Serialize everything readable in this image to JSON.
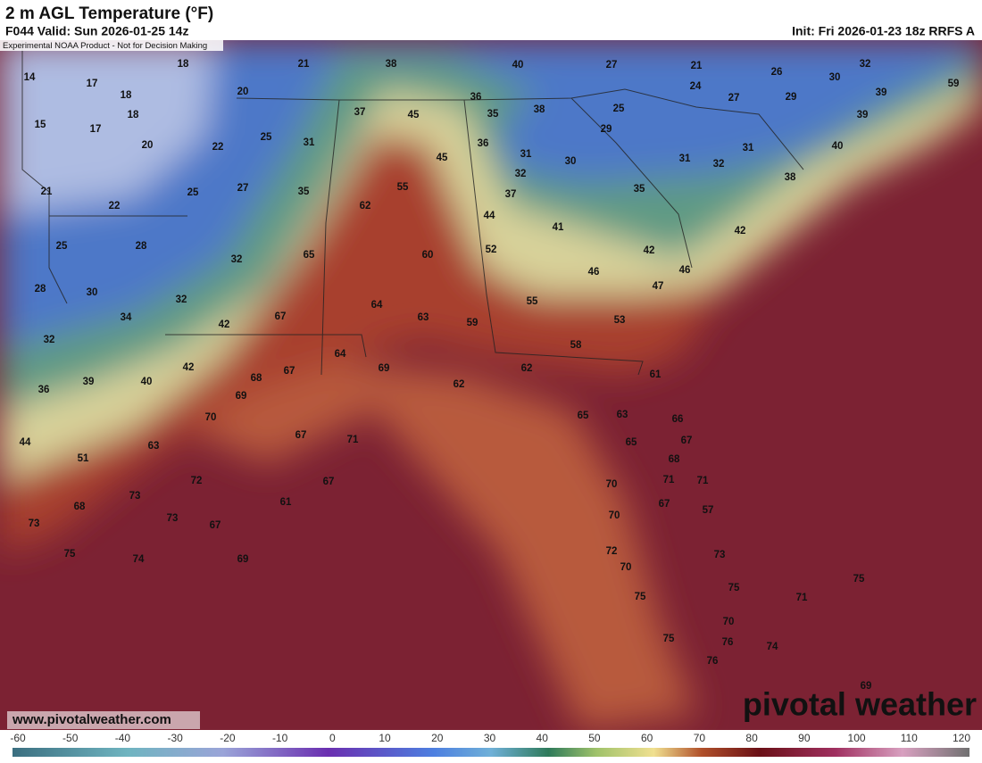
{
  "header": {
    "title": "2 m AGL Temperature (°F)",
    "valid": "F044 Valid: Sun 2026-01-25 14z",
    "init": "Init: Fri 2026-01-23 18z RRFS A",
    "disclaimer": "Experimental NOAA Product - Not for Decision Making"
  },
  "map": {
    "stations": [
      14,
      18,
      21,
      38,
      40,
      27,
      21,
      26,
      32,
      17,
      18,
      20,
      36,
      24,
      27,
      29,
      30,
      39,
      59,
      18,
      37,
      45,
      35,
      38,
      25,
      39,
      15,
      17,
      25,
      31,
      36,
      29,
      20,
      22,
      31,
      30,
      31,
      32,
      31,
      40,
      45,
      32,
      38,
      21,
      25,
      27,
      35,
      55,
      37,
      35,
      22,
      62,
      44,
      41,
      42,
      25,
      28,
      32,
      65,
      60,
      52,
      42,
      46,
      46,
      47,
      28,
      30,
      32,
      64,
      55,
      34,
      67,
      63,
      59,
      53,
      42,
      32,
      58,
      64,
      42,
      67,
      68,
      69,
      62,
      61,
      36,
      39,
      40,
      62,
      69,
      70,
      65,
      63,
      66,
      67,
      71,
      65,
      67,
      44,
      63,
      51,
      68,
      72,
      67,
      70,
      71,
      71,
      73,
      61,
      68,
      67,
      70,
      57,
      73,
      73,
      67,
      72,
      73,
      75,
      74,
      69,
      70,
      75,
      75,
      71,
      75,
      70,
      75,
      76,
      74,
      76,
      69
    ],
    "website": "www.pivotalweather.com",
    "brand": "pivotal weather"
  },
  "colorbar": {
    "ticks": [
      -60,
      -50,
      -40,
      -30,
      -20,
      -10,
      0,
      10,
      20,
      30,
      40,
      50,
      60,
      70,
      80,
      90,
      100,
      110,
      120
    ]
  }
}
